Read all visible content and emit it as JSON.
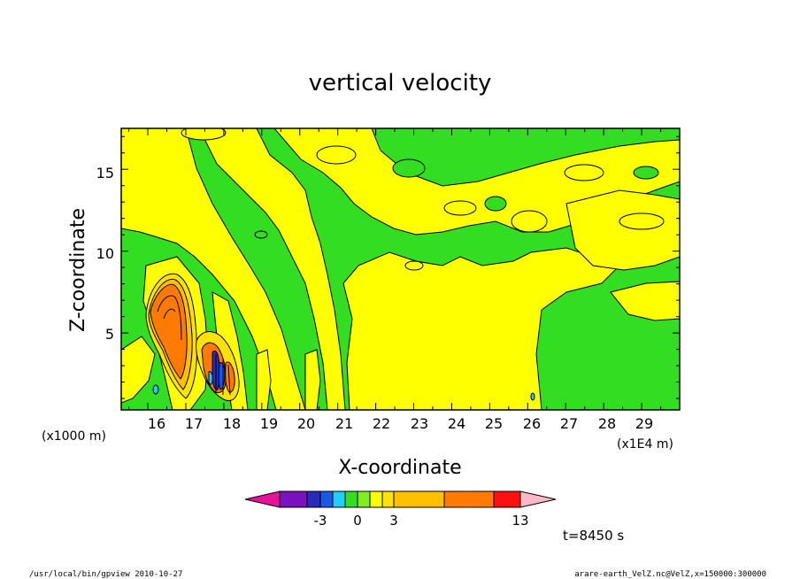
{
  "chart_data": {
    "type": "heatmap",
    "title": "vertical velocity",
    "xlabel": "X-coordinate",
    "ylabel": "Z-coordinate",
    "x_unit_label": "(x1E4 m)",
    "y_unit_label": "(x1000 m)",
    "xlim": [
      15.3,
      30.0
    ],
    "ylim": [
      0.3,
      17.5
    ],
    "x_ticks": [
      "16",
      "17",
      "18",
      "19",
      "20",
      "21",
      "22",
      "23",
      "24",
      "25",
      "26",
      "27",
      "28",
      "29"
    ],
    "y_ticks": [
      "5",
      "10",
      "15"
    ],
    "grid": false,
    "colorbar": {
      "levels": [
        -13,
        -9,
        -5,
        -3,
        -2,
        -1,
        0,
        1,
        2,
        3,
        7,
        11,
        13
      ],
      "labeled_ticks": [
        "-3",
        "0",
        "3",
        "13"
      ],
      "colors": [
        "#e8129a",
        "#7a10c0",
        "#2a2ab8",
        "#1a5ae0",
        "#22ccff",
        "#33dd22",
        "#7fee22",
        "#ffff00",
        "#ffe200",
        "#ffc000",
        "#ff7a00",
        "#ff1010",
        "#ff7070",
        "#ffb8c8"
      ]
    },
    "regions": [
      {
        "kind": "background",
        "value": "0 to 1",
        "color": "#33dd22"
      },
      {
        "kind": "updraft",
        "value": "1 to 2",
        "color": "#ffff00",
        "x_range": [
          21.0,
          30.0
        ],
        "z_range": [
          0.3,
          12
        ]
      },
      {
        "kind": "updraft-core",
        "value": "3 to 7",
        "color": "#ff7a00",
        "x_center": 16.2,
        "z_center": 6.0
      },
      {
        "kind": "updraft-core",
        "value": "3 to 7",
        "color": "#ff7a00",
        "x_center": 17.6,
        "z_center": 2.0
      },
      {
        "kind": "downdraft-core",
        "value": "-5 to -3",
        "color": "#2a2ab8",
        "x_center": 17.7,
        "z_center": 1.8
      }
    ]
  },
  "footer": {
    "time": "t=8450 s",
    "left": "/usr/local/bin/gpview   2010-10-27",
    "right": "arare-earth_VelZ.nc@VelZ,x=150000:300000"
  }
}
